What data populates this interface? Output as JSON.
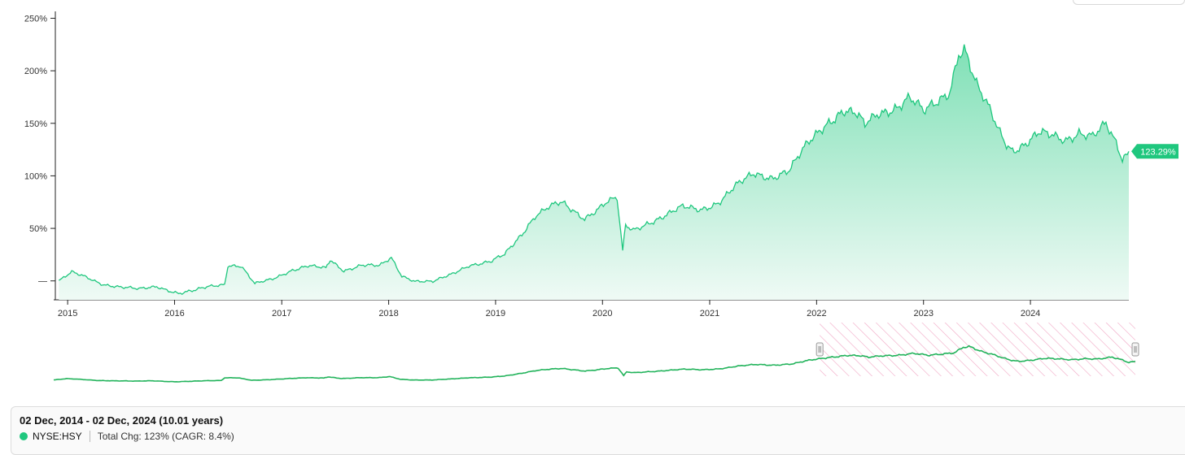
{
  "chart_data": {
    "type": "area",
    "series": [
      {
        "name": "NYSE:HSY",
        "x": [
          "2014-12-02",
          "2015-01-15",
          "2015-03-01",
          "2015-05-01",
          "2015-07-01",
          "2015-09-01",
          "2015-11-01",
          "2016-01-15",
          "2016-03-01",
          "2016-05-01",
          "2016-06-20",
          "2016-07-01",
          "2016-08-15",
          "2016-10-01",
          "2016-12-01",
          "2017-02-01",
          "2017-04-01",
          "2017-06-01",
          "2017-06-15",
          "2017-08-01",
          "2017-10-01",
          "2017-12-01",
          "2018-01-10",
          "2018-02-15",
          "2018-04-01",
          "2018-06-01",
          "2018-08-01",
          "2018-10-01",
          "2018-12-15",
          "2019-02-01",
          "2019-04-01",
          "2019-05-15",
          "2019-07-01",
          "2019-08-15",
          "2019-09-15",
          "2019-11-01",
          "2019-12-01",
          "2020-01-15",
          "2020-02-20",
          "2020-03-10",
          "2020-03-20",
          "2020-04-15",
          "2020-06-01",
          "2020-08-01",
          "2020-10-01",
          "2020-12-01",
          "2021-02-01",
          "2021-04-01",
          "2021-06-01",
          "2021-08-01",
          "2021-10-01",
          "2021-12-01",
          "2022-02-01",
          "2022-04-01",
          "2022-05-15",
          "2022-06-15",
          "2022-08-01",
          "2022-10-01",
          "2022-11-15",
          "2023-01-01",
          "2023-02-15",
          "2023-04-01",
          "2023-05-01",
          "2023-05-20",
          "2023-07-01",
          "2023-08-15",
          "2023-10-01",
          "2023-11-01",
          "2023-12-15",
          "2024-02-01",
          "2024-03-15",
          "2024-05-01",
          "2024-06-15",
          "2024-08-01",
          "2024-09-15",
          "2024-10-20",
          "2024-11-10",
          "2024-12-02"
        ],
        "values": [
          0,
          8,
          4,
          -3,
          -6,
          -8,
          -5,
          -12,
          -10,
          -5,
          -3,
          15,
          14,
          -3,
          2,
          10,
          14,
          12,
          20,
          10,
          15,
          14,
          22,
          5,
          0,
          -1,
          6,
          15,
          18,
          25,
          45,
          62,
          70,
          74,
          68,
          60,
          66,
          75,
          78,
          28,
          52,
          48,
          55,
          62,
          70,
          68,
          75,
          90,
          102,
          99,
          105,
          130,
          150,
          162,
          158,
          148,
          160,
          166,
          174,
          160,
          170,
          182,
          218,
          222,
          185,
          162,
          135,
          125,
          130,
          140,
          138,
          135,
          142,
          137,
          148,
          130,
          116,
          123.29
        ]
      }
    ],
    "end_label": "123.29%",
    "y_ticks": [
      0,
      50,
      100,
      150,
      200,
      250
    ],
    "y_tick_labels": [
      "—",
      "50%",
      "100%",
      "150%",
      "200%",
      "250%"
    ],
    "x_ticks": [
      "2015",
      "2016",
      "2017",
      "2018",
      "2019",
      "2020",
      "2021",
      "2022",
      "2023",
      "2024"
    ],
    "ylim": [
      -18,
      255
    ],
    "xlim": [
      "2014-11-20",
      "2024-12-02"
    ],
    "grid": false,
    "legend": "bottom",
    "line_color": "#1fc77e",
    "fill_top_color": "#7fe0b6",
    "fill_bottom_color": "#effaf5",
    "navigator": {
      "line_color": "#22b35b",
      "selection_from": "2022-01-01",
      "selection_to": "2024-12-02",
      "hatch_color": "#f1a6c4"
    }
  },
  "footer": {
    "date_range": "02 Dec, 2014 - 02 Dec, 2024 (10.01 years)",
    "series_name": "NYSE:HSY",
    "stats": "Total Chg: 123% (CAGR: 8.4%)"
  }
}
